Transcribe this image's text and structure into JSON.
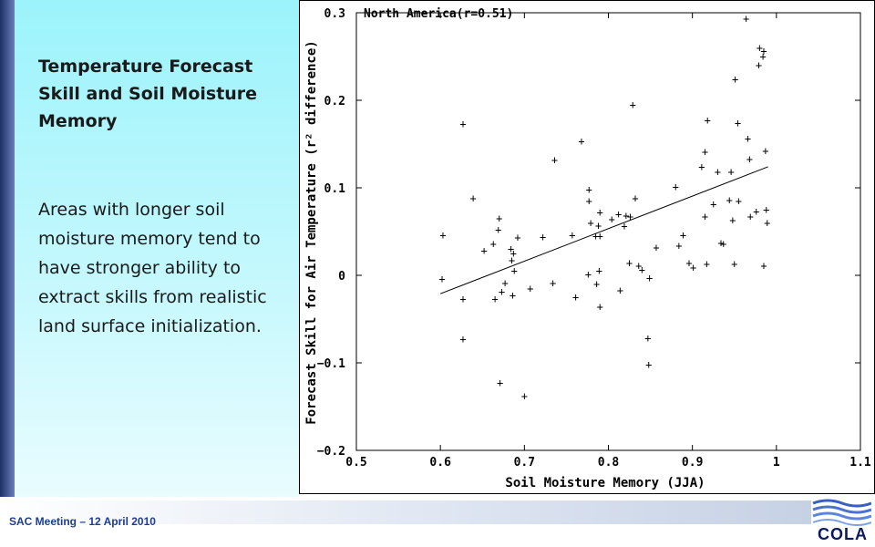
{
  "slide": {
    "title": "Temperature Forecast Skill and Soil Moisture Memory",
    "body": "Areas with longer soil moisture memory tend to have stronger ability to extract skills from realistic land surface initialization.",
    "footer": "SAC Meeting – 12 April 2010",
    "logo_text": "COLA"
  },
  "chart_data": {
    "type": "scatter",
    "annotation": "North America(r=0.51)",
    "xlabel": "Soil Moisture Memory (JJA)",
    "ylabel": "Forecast Skill for Air Temperature (r² difference)",
    "xlim": [
      0.5,
      1.1
    ],
    "ylim": [
      -0.2,
      0.3
    ],
    "xticks": [
      0.5,
      0.6,
      0.7,
      0.8,
      0.9,
      1.0,
      1.1
    ],
    "xtick_labels": [
      "0.5",
      "0.6",
      "0.7",
      "0.8",
      "0.9",
      "1",
      "1.1"
    ],
    "yticks": [
      -0.2,
      -0.1,
      0,
      0.1,
      0.2,
      0.3
    ],
    "ytick_labels": [
      "−0.2",
      "−0.1",
      "0",
      "0.1",
      "0.2",
      "0.3"
    ],
    "marker": "+",
    "grid": false,
    "fit_line": {
      "x": [
        0.6,
        0.99
      ],
      "y": [
        -0.021,
        0.124
      ]
    },
    "points": [
      {
        "x": 0.603,
        "y": 0.046
      },
      {
        "x": 0.602,
        "y": -0.004
      },
      {
        "x": 0.627,
        "y": 0.173
      },
      {
        "x": 0.627,
        "y": -0.027
      },
      {
        "x": 0.627,
        "y": -0.073
      },
      {
        "x": 0.639,
        "y": 0.088
      },
      {
        "x": 0.652,
        "y": 0.028
      },
      {
        "x": 0.663,
        "y": 0.036
      },
      {
        "x": 0.665,
        "y": -0.027
      },
      {
        "x": 0.669,
        "y": 0.052
      },
      {
        "x": 0.67,
        "y": 0.065
      },
      {
        "x": 0.671,
        "y": -0.123
      },
      {
        "x": 0.673,
        "y": -0.019
      },
      {
        "x": 0.677,
        "y": -0.009
      },
      {
        "x": 0.684,
        "y": 0.03
      },
      {
        "x": 0.685,
        "y": 0.017
      },
      {
        "x": 0.686,
        "y": -0.023
      },
      {
        "x": 0.687,
        "y": 0.025
      },
      {
        "x": 0.688,
        "y": 0.005
      },
      {
        "x": 0.692,
        "y": 0.043
      },
      {
        "x": 0.7,
        "y": -0.138
      },
      {
        "x": 0.707,
        "y": -0.015
      },
      {
        "x": 0.722,
        "y": 0.044
      },
      {
        "x": 0.734,
        "y": -0.009
      },
      {
        "x": 0.736,
        "y": 0.132
      },
      {
        "x": 0.757,
        "y": 0.046
      },
      {
        "x": 0.761,
        "y": -0.025
      },
      {
        "x": 0.768,
        "y": 0.153
      },
      {
        "x": 0.776,
        "y": 0.001
      },
      {
        "x": 0.777,
        "y": 0.098
      },
      {
        "x": 0.777,
        "y": 0.085
      },
      {
        "x": 0.779,
        "y": 0.06
      },
      {
        "x": 0.785,
        "y": 0.045
      },
      {
        "x": 0.786,
        "y": -0.01
      },
      {
        "x": 0.788,
        "y": 0.057
      },
      {
        "x": 0.789,
        "y": 0.005
      },
      {
        "x": 0.79,
        "y": -0.036
      },
      {
        "x": 0.79,
        "y": 0.045
      },
      {
        "x": 0.79,
        "y": 0.072
      },
      {
        "x": 0.804,
        "y": 0.064
      },
      {
        "x": 0.812,
        "y": 0.07
      },
      {
        "x": 0.814,
        "y": -0.017
      },
      {
        "x": 0.819,
        "y": 0.056
      },
      {
        "x": 0.821,
        "y": 0.068
      },
      {
        "x": 0.825,
        "y": 0.014
      },
      {
        "x": 0.826,
        "y": 0.067
      },
      {
        "x": 0.829,
        "y": 0.195
      },
      {
        "x": 0.832,
        "y": 0.088
      },
      {
        "x": 0.836,
        "y": 0.011
      },
      {
        "x": 0.84,
        "y": 0.006
      },
      {
        "x": 0.847,
        "y": -0.072
      },
      {
        "x": 0.848,
        "y": -0.102
      },
      {
        "x": 0.849,
        "y": -0.003
      },
      {
        "x": 0.857,
        "y": 0.032
      },
      {
        "x": 0.88,
        "y": 0.101
      },
      {
        "x": 0.884,
        "y": 0.034
      },
      {
        "x": 0.889,
        "y": 0.046
      },
      {
        "x": 0.896,
        "y": 0.014
      },
      {
        "x": 0.901,
        "y": 0.009
      },
      {
        "x": 0.911,
        "y": 0.124
      },
      {
        "x": 0.915,
        "y": 0.067
      },
      {
        "x": 0.915,
        "y": 0.141
      },
      {
        "x": 0.917,
        "y": 0.013
      },
      {
        "x": 0.918,
        "y": 0.177
      },
      {
        "x": 0.925,
        "y": 0.081
      },
      {
        "x": 0.93,
        "y": 0.118
      },
      {
        "x": 0.934,
        "y": 0.037
      },
      {
        "x": 0.937,
        "y": 0.036
      },
      {
        "x": 0.944,
        "y": 0.086
      },
      {
        "x": 0.946,
        "y": 0.118
      },
      {
        "x": 0.948,
        "y": 0.063
      },
      {
        "x": 0.95,
        "y": 0.013
      },
      {
        "x": 0.951,
        "y": 0.224
      },
      {
        "x": 0.954,
        "y": 0.174
      },
      {
        "x": 0.955,
        "y": 0.085
      },
      {
        "x": 0.964,
        "y": 0.293
      },
      {
        "x": 0.966,
        "y": 0.156
      },
      {
        "x": 0.968,
        "y": 0.133
      },
      {
        "x": 0.969,
        "y": 0.067
      },
      {
        "x": 0.976,
        "y": 0.073
      },
      {
        "x": 0.979,
        "y": 0.24
      },
      {
        "x": 0.98,
        "y": 0.26
      },
      {
        "x": 0.984,
        "y": 0.25
      },
      {
        "x": 0.985,
        "y": 0.011
      },
      {
        "x": 0.985,
        "y": 0.256
      },
      {
        "x": 0.987,
        "y": 0.142
      },
      {
        "x": 0.988,
        "y": 0.075
      },
      {
        "x": 0.989,
        "y": 0.06
      }
    ]
  }
}
